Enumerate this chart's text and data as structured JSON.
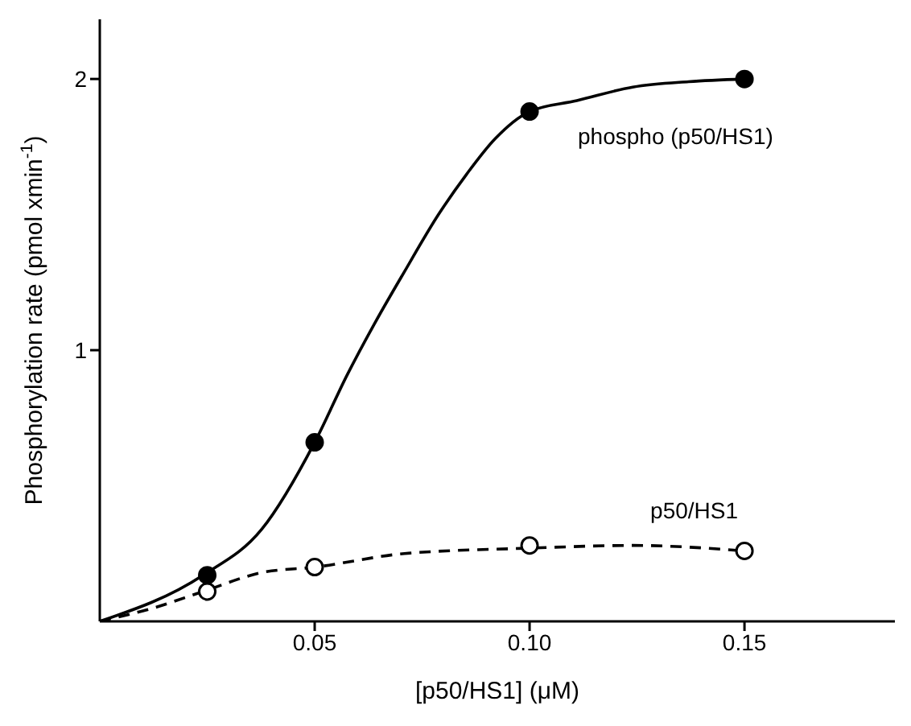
{
  "chart_data": {
    "type": "scatter",
    "xlabel": "[p50/HS1] (μM)",
    "ylabel": "Phosphorylation rate (pmol xmin$^{-1}$)",
    "xlim": [
      0,
      0.185
    ],
    "ylim": [
      0,
      2.22
    ],
    "xticks": [
      {
        "value": 0.05,
        "label": "0.05"
      },
      {
        "value": 0.1,
        "label": "0.10"
      },
      {
        "value": 0.15,
        "label": "0.15"
      }
    ],
    "yticks": [
      1,
      2
    ],
    "grid": false,
    "legend": false,
    "series": [
      {
        "type": "line",
        "color": "#000000",
        "line_style": "solid",
        "marker": "none",
        "x": [
          0,
          0.024,
          0.0377,
          0.05,
          0.0576,
          0.064,
          0.0709,
          0.0788,
          0.0854,
          0.092,
          0.1,
          0.111,
          0.124,
          0.137,
          0.15
        ],
        "values": [
          0,
          0.17,
          0.34,
          0.66,
          0.91,
          1.1,
          1.29,
          1.5,
          1.65,
          1.78,
          1.88,
          1.92,
          1.97,
          1.99,
          2.0
        ]
      },
      {
        "name": "phospho (p50/HS1)",
        "color": "#000000",
        "marker": "circle",
        "x": [
          0.025,
          0.05,
          0.1,
          0.15
        ],
        "values": [
          0.17,
          0.66,
          1.88,
          2.0
        ]
      },
      {
        "type": "line",
        "color": "#000000",
        "line_style": "dashed",
        "marker": "none",
        "x": [
          0,
          0.0126,
          0.024,
          0.0377,
          0.05,
          0.0709,
          0.1,
          0.124,
          0.15
        ],
        "values": [
          0,
          0.05,
          0.11,
          0.18,
          0.2,
          0.25,
          0.27,
          0.28,
          0.26
        ]
      },
      {
        "name": "p50/HS1",
        "color": "#000000",
        "marker": "circle-open",
        "x": [
          0.025,
          0.05,
          0.1,
          0.15
        ],
        "values": [
          0.11,
          0.2,
          0.28,
          0.26
        ]
      }
    ]
  }
}
